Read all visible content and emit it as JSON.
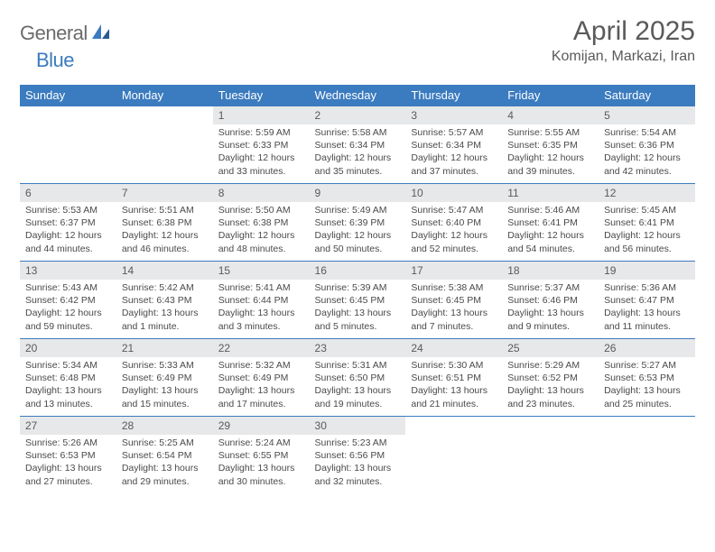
{
  "brand": {
    "name1": "General",
    "name2": "Blue"
  },
  "title": "April 2025",
  "location": "Komijan, Markazi, Iran",
  "colors": {
    "header_bg": "#3b7bbf",
    "daynum_bg": "#e7e8e9",
    "text": "#5a5a5a"
  },
  "dayHeaders": [
    "Sunday",
    "Monday",
    "Tuesday",
    "Wednesday",
    "Thursday",
    "Friday",
    "Saturday"
  ],
  "weeks": [
    [
      null,
      null,
      {
        "n": "1",
        "sr": "Sunrise: 5:59 AM",
        "ss": "Sunset: 6:33 PM",
        "dl": "Daylight: 12 hours and 33 minutes."
      },
      {
        "n": "2",
        "sr": "Sunrise: 5:58 AM",
        "ss": "Sunset: 6:34 PM",
        "dl": "Daylight: 12 hours and 35 minutes."
      },
      {
        "n": "3",
        "sr": "Sunrise: 5:57 AM",
        "ss": "Sunset: 6:34 PM",
        "dl": "Daylight: 12 hours and 37 minutes."
      },
      {
        "n": "4",
        "sr": "Sunrise: 5:55 AM",
        "ss": "Sunset: 6:35 PM",
        "dl": "Daylight: 12 hours and 39 minutes."
      },
      {
        "n": "5",
        "sr": "Sunrise: 5:54 AM",
        "ss": "Sunset: 6:36 PM",
        "dl": "Daylight: 12 hours and 42 minutes."
      }
    ],
    [
      {
        "n": "6",
        "sr": "Sunrise: 5:53 AM",
        "ss": "Sunset: 6:37 PM",
        "dl": "Daylight: 12 hours and 44 minutes."
      },
      {
        "n": "7",
        "sr": "Sunrise: 5:51 AM",
        "ss": "Sunset: 6:38 PM",
        "dl": "Daylight: 12 hours and 46 minutes."
      },
      {
        "n": "8",
        "sr": "Sunrise: 5:50 AM",
        "ss": "Sunset: 6:38 PM",
        "dl": "Daylight: 12 hours and 48 minutes."
      },
      {
        "n": "9",
        "sr": "Sunrise: 5:49 AM",
        "ss": "Sunset: 6:39 PM",
        "dl": "Daylight: 12 hours and 50 minutes."
      },
      {
        "n": "10",
        "sr": "Sunrise: 5:47 AM",
        "ss": "Sunset: 6:40 PM",
        "dl": "Daylight: 12 hours and 52 minutes."
      },
      {
        "n": "11",
        "sr": "Sunrise: 5:46 AM",
        "ss": "Sunset: 6:41 PM",
        "dl": "Daylight: 12 hours and 54 minutes."
      },
      {
        "n": "12",
        "sr": "Sunrise: 5:45 AM",
        "ss": "Sunset: 6:41 PM",
        "dl": "Daylight: 12 hours and 56 minutes."
      }
    ],
    [
      {
        "n": "13",
        "sr": "Sunrise: 5:43 AM",
        "ss": "Sunset: 6:42 PM",
        "dl": "Daylight: 12 hours and 59 minutes."
      },
      {
        "n": "14",
        "sr": "Sunrise: 5:42 AM",
        "ss": "Sunset: 6:43 PM",
        "dl": "Daylight: 13 hours and 1 minute."
      },
      {
        "n": "15",
        "sr": "Sunrise: 5:41 AM",
        "ss": "Sunset: 6:44 PM",
        "dl": "Daylight: 13 hours and 3 minutes."
      },
      {
        "n": "16",
        "sr": "Sunrise: 5:39 AM",
        "ss": "Sunset: 6:45 PM",
        "dl": "Daylight: 13 hours and 5 minutes."
      },
      {
        "n": "17",
        "sr": "Sunrise: 5:38 AM",
        "ss": "Sunset: 6:45 PM",
        "dl": "Daylight: 13 hours and 7 minutes."
      },
      {
        "n": "18",
        "sr": "Sunrise: 5:37 AM",
        "ss": "Sunset: 6:46 PM",
        "dl": "Daylight: 13 hours and 9 minutes."
      },
      {
        "n": "19",
        "sr": "Sunrise: 5:36 AM",
        "ss": "Sunset: 6:47 PM",
        "dl": "Daylight: 13 hours and 11 minutes."
      }
    ],
    [
      {
        "n": "20",
        "sr": "Sunrise: 5:34 AM",
        "ss": "Sunset: 6:48 PM",
        "dl": "Daylight: 13 hours and 13 minutes."
      },
      {
        "n": "21",
        "sr": "Sunrise: 5:33 AM",
        "ss": "Sunset: 6:49 PM",
        "dl": "Daylight: 13 hours and 15 minutes."
      },
      {
        "n": "22",
        "sr": "Sunrise: 5:32 AM",
        "ss": "Sunset: 6:49 PM",
        "dl": "Daylight: 13 hours and 17 minutes."
      },
      {
        "n": "23",
        "sr": "Sunrise: 5:31 AM",
        "ss": "Sunset: 6:50 PM",
        "dl": "Daylight: 13 hours and 19 minutes."
      },
      {
        "n": "24",
        "sr": "Sunrise: 5:30 AM",
        "ss": "Sunset: 6:51 PM",
        "dl": "Daylight: 13 hours and 21 minutes."
      },
      {
        "n": "25",
        "sr": "Sunrise: 5:29 AM",
        "ss": "Sunset: 6:52 PM",
        "dl": "Daylight: 13 hours and 23 minutes."
      },
      {
        "n": "26",
        "sr": "Sunrise: 5:27 AM",
        "ss": "Sunset: 6:53 PM",
        "dl": "Daylight: 13 hours and 25 minutes."
      }
    ],
    [
      {
        "n": "27",
        "sr": "Sunrise: 5:26 AM",
        "ss": "Sunset: 6:53 PM",
        "dl": "Daylight: 13 hours and 27 minutes."
      },
      {
        "n": "28",
        "sr": "Sunrise: 5:25 AM",
        "ss": "Sunset: 6:54 PM",
        "dl": "Daylight: 13 hours and 29 minutes."
      },
      {
        "n": "29",
        "sr": "Sunrise: 5:24 AM",
        "ss": "Sunset: 6:55 PM",
        "dl": "Daylight: 13 hours and 30 minutes."
      },
      {
        "n": "30",
        "sr": "Sunrise: 5:23 AM",
        "ss": "Sunset: 6:56 PM",
        "dl": "Daylight: 13 hours and 32 minutes."
      },
      null,
      null,
      null
    ]
  ]
}
